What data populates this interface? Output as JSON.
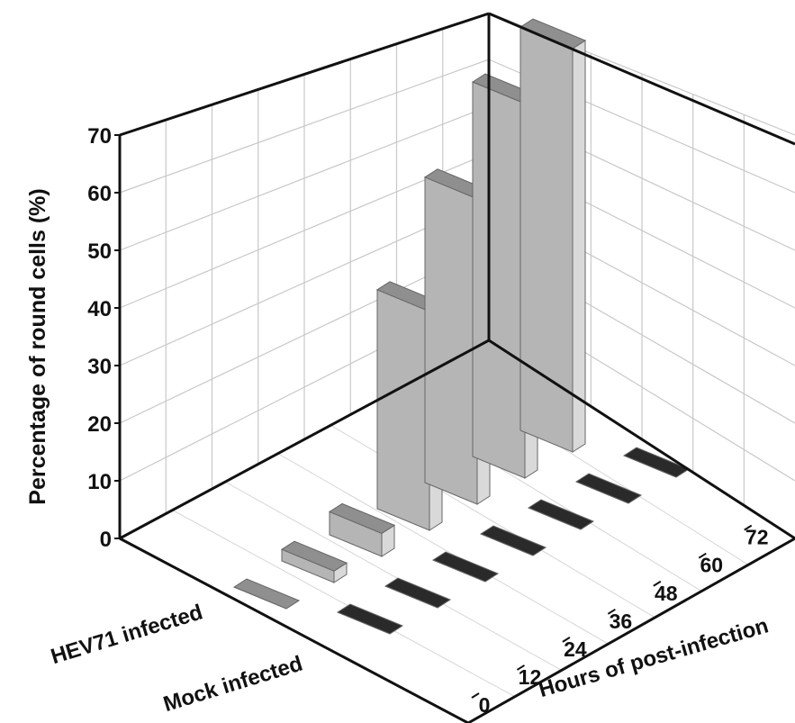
{
  "chart_data": {
    "type": "bar",
    "subtype": "3d-bar",
    "title": "",
    "ylabel": "Percentage of round cells (%)",
    "xlabel": "Hours of post-infection",
    "ylim": [
      0,
      70
    ],
    "yticks": [
      0,
      10,
      20,
      30,
      40,
      50,
      60,
      70
    ],
    "categories": [
      "0",
      "12",
      "24",
      "36",
      "48",
      "60",
      "72"
    ],
    "series": [
      {
        "name": "HEV71 infected",
        "color": "#b8b8b8",
        "values": [
          0,
          2,
          4,
          38,
          53,
          65,
          70
        ]
      },
      {
        "name": "Mock infected",
        "color": "#1a1a1a",
        "values": [
          0,
          0,
          0,
          0,
          0,
          0,
          0
        ]
      }
    ],
    "grid": true,
    "legend": "none"
  }
}
